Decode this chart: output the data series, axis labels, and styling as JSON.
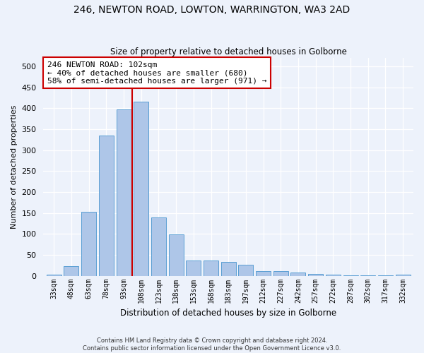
{
  "title": "246, NEWTON ROAD, LOWTON, WARRINGTON, WA3 2AD",
  "subtitle": "Size of property relative to detached houses in Golborne",
  "xlabel": "Distribution of detached houses by size in Golborne",
  "ylabel": "Number of detached properties",
  "categories": [
    "33sqm",
    "48sqm",
    "63sqm",
    "78sqm",
    "93sqm",
    "108sqm",
    "123sqm",
    "138sqm",
    "153sqm",
    "168sqm",
    "183sqm",
    "197sqm",
    "212sqm",
    "227sqm",
    "242sqm",
    "257sqm",
    "272sqm",
    "287sqm",
    "302sqm",
    "317sqm",
    "332sqm"
  ],
  "values": [
    3,
    23,
    152,
    335,
    397,
    415,
    140,
    99,
    37,
    36,
    33,
    27,
    11,
    11,
    8,
    4,
    2,
    1,
    1,
    1,
    2
  ],
  "bar_color": "#aec6e8",
  "bar_edge_color": "#5a9fd4",
  "vline_x": 4.5,
  "vline_color": "#cc0000",
  "annotation_text": "246 NEWTON ROAD: 102sqm\n← 40% of detached houses are smaller (680)\n58% of semi-detached houses are larger (971) →",
  "annotation_box_color": "#ffffff",
  "annotation_box_edge": "#cc0000",
  "footer_text": "Contains HM Land Registry data © Crown copyright and database right 2024.\nContains public sector information licensed under the Open Government Licence v3.0.",
  "ylim": [
    0,
    520
  ],
  "yticks": [
    0,
    50,
    100,
    150,
    200,
    250,
    300,
    350,
    400,
    450,
    500
  ],
  "background_color": "#edf2fb",
  "plot_background": "#edf2fb"
}
